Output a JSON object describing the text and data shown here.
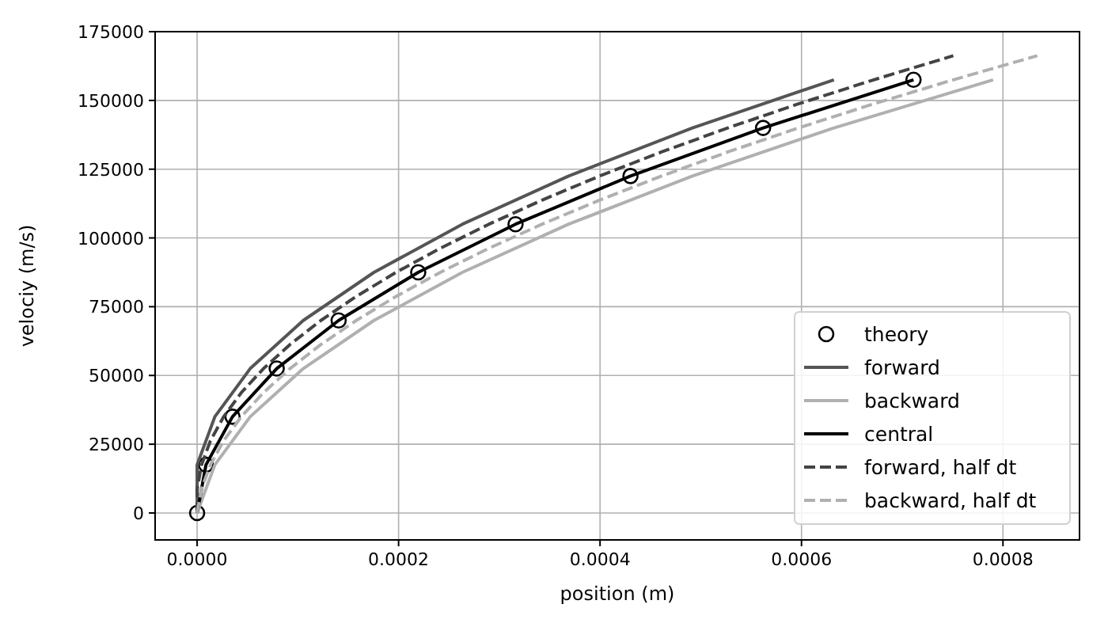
{
  "chart_data": {
    "type": "line",
    "xlabel": "position (m)",
    "ylabel": "velociy (m/s)",
    "xlim": [
      -4.17e-05,
      0.000876
    ],
    "ylim": [
      -9800,
      175000
    ],
    "xticks": [
      {
        "value": 0,
        "label": "0.0000"
      },
      {
        "value": 0.0002,
        "label": "0.0002"
      },
      {
        "value": 0.0004,
        "label": "0.0004"
      },
      {
        "value": 0.0006,
        "label": "0.0006"
      },
      {
        "value": 0.0008,
        "label": "0.0008"
      }
    ],
    "yticks": [
      0,
      25000,
      50000,
      75000,
      100000,
      125000,
      150000,
      175000
    ],
    "grid": true,
    "legend": "bottom right",
    "series": [
      {
        "name": "theory",
        "type": "scatter",
        "marker": "circle",
        "color": "#000000",
        "x": [
          0,
          8.8e-06,
          3.51e-05,
          7.9e-05,
          0.0001405,
          0.0002195,
          0.0003161,
          0.0004302,
          0.0005619,
          0.0007112
        ],
        "values": [
          0,
          17500,
          35000,
          52500,
          70000,
          87500,
          105000,
          122500,
          140000,
          157500
        ]
      },
      {
        "name": "forward",
        "color": "#555555",
        "line_style": "solid",
        "x": [
          0,
          0,
          1.76e-05,
          5.27e-05,
          0.0001054,
          0.0001756,
          0.0002634,
          0.0003688,
          0.0004917,
          0.0006322
        ],
        "values": [
          0,
          17500,
          35000,
          52500,
          70000,
          87500,
          105000,
          122500,
          140000,
          157500
        ]
      },
      {
        "name": "backward",
        "color": "#b0b0b0",
        "line_style": "solid",
        "x": [
          0,
          1.76e-05,
          5.27e-05,
          0.0001054,
          0.0001756,
          0.0002634,
          0.0003688,
          0.0004917,
          0.0006322,
          0.0007902
        ],
        "values": [
          0,
          17500,
          35000,
          52500,
          70000,
          87500,
          105000,
          122500,
          140000,
          157500
        ]
      },
      {
        "name": "central",
        "color": "#000000",
        "line_style": "solid",
        "x": [
          0,
          8.8e-06,
          3.51e-05,
          7.9e-05,
          0.0001405,
          0.0002195,
          0.0003161,
          0.0004302,
          0.0005619,
          0.0007112
        ],
        "values": [
          0,
          17500,
          35000,
          52500,
          70000,
          87500,
          105000,
          122500,
          140000,
          157500
        ]
      },
      {
        "name": "forward, half dt",
        "color": "#444444",
        "line_style": "dashed",
        "x": [
          0,
          0,
          4.4e-06,
          1.32e-05,
          2.63e-05,
          4.39e-05,
          6.59e-05,
          9.22e-05,
          0.0001229,
          0.000158,
          0.0001976,
          0.0002415,
          0.0002897,
          0.0003424,
          0.0003995,
          0.000461,
          0.0005268,
          0.000597,
          0.0006717,
          0.0007507
        ],
        "values": [
          0,
          8750,
          17500,
          26250,
          35000,
          43750,
          52500,
          61250,
          70000,
          78750,
          87500,
          96250,
          105000,
          113750,
          122500,
          131250,
          140000,
          148750,
          157500,
          166250
        ]
      },
      {
        "name": "backward, half dt",
        "color": "#b0b0b0",
        "line_style": "dashed",
        "x": [
          0,
          4.4e-06,
          1.32e-05,
          2.63e-05,
          4.39e-05,
          6.59e-05,
          9.22e-05,
          0.0001229,
          0.000158,
          0.0001976,
          0.0002415,
          0.0002897,
          0.0003424,
          0.0003995,
          0.000461,
          0.0005268,
          0.000597,
          0.0006717,
          0.0007507,
          0.0008341
        ],
        "values": [
          0,
          8750,
          17500,
          26250,
          35000,
          43750,
          52500,
          61250,
          70000,
          78750,
          87500,
          96250,
          105000,
          113750,
          122500,
          131250,
          140000,
          148750,
          157500,
          166250
        ]
      }
    ]
  }
}
